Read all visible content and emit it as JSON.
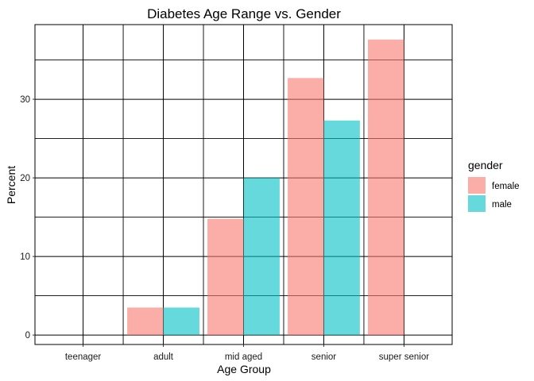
{
  "chart_data": {
    "type": "bar",
    "title": "Diabetes Age Range vs. Gender",
    "xlabel": "Age Group",
    "ylabel": "Percent",
    "categories": [
      "teenager",
      "adult",
      "mid aged",
      "senior",
      "super senior"
    ],
    "series": [
      {
        "name": "female",
        "color": "#F8766D",
        "values": [
          0,
          3.5,
          14.8,
          32.7,
          37.6
        ]
      },
      {
        "name": "male",
        "color": "#00BFC4",
        "values": [
          0,
          3.5,
          20.0,
          27.3,
          0
        ]
      }
    ],
    "ylim": [
      -1.2,
      39.5
    ],
    "yticks": [
      0,
      10,
      20,
      30
    ],
    "grid": true,
    "legend": {
      "title": "gender",
      "position": "right"
    }
  }
}
